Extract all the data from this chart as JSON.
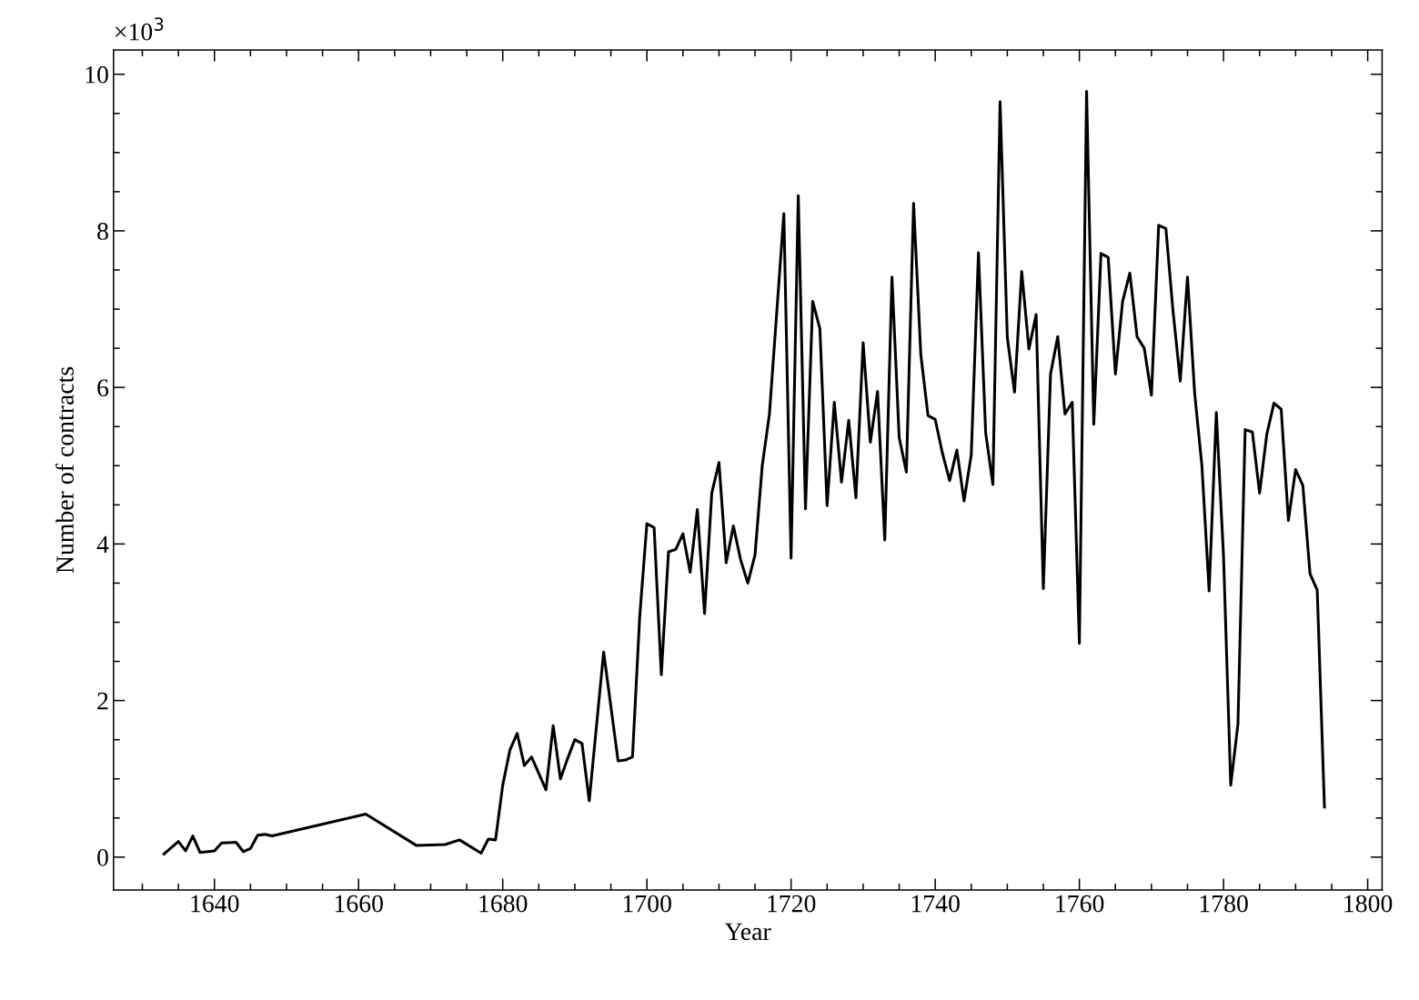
{
  "chart_data": {
    "type": "line",
    "xlabel": "Year",
    "ylabel": "Number of contracts",
    "annotations": [
      "×10$^{3}$"
    ],
    "x": [
      1633,
      1635,
      1636,
      1637,
      1638,
      1640,
      1641,
      1643,
      1644,
      1645,
      1646,
      1647,
      1648,
      1661,
      1668,
      1672,
      1674,
      1677,
      1678,
      1679,
      1680,
      1681,
      1682,
      1683,
      1684,
      1686,
      1687,
      1688,
      1689,
      1690,
      1691,
      1692,
      1694,
      1696,
      1697,
      1698,
      1699,
      1700,
      1701,
      1702,
      1703,
      1704,
      1705,
      1706,
      1707,
      1708,
      1709,
      1710,
      1711,
      1712,
      1713,
      1714,
      1715,
      1716,
      1717,
      1719,
      1720,
      1721,
      1722,
      1723,
      1724,
      1725,
      1726,
      1727,
      1728,
      1729,
      1730,
      1731,
      1732,
      1733,
      1734,
      1735,
      1736,
      1737,
      1738,
      1739,
      1740,
      1741,
      1742,
      1743,
      1744,
      1745,
      1746,
      1747,
      1748,
      1749,
      1750,
      1751,
      1752,
      1753,
      1754,
      1755,
      1756,
      1757,
      1758,
      1759,
      1760,
      1761,
      1762,
      1763,
      1764,
      1765,
      1766,
      1767,
      1768,
      1769,
      1770,
      1771,
      1772,
      1773,
      1774,
      1775,
      1776,
      1777,
      1778,
      1779,
      1780,
      1781,
      1782,
      1783,
      1784,
      1785,
      1786,
      1787,
      1788,
      1789,
      1790,
      1791,
      1792,
      1793,
      1794
    ],
    "series": [
      {
        "color": "#000000",
        "values": [
          0.04,
          0.2,
          0.08,
          0.27,
          0.06,
          0.08,
          0.18,
          0.19,
          0.07,
          0.11,
          0.28,
          0.29,
          0.27,
          0.55,
          0.15,
          0.16,
          0.22,
          0.05,
          0.23,
          0.22,
          0.92,
          1.37,
          1.58,
          1.17,
          1.28,
          0.86,
          1.68,
          1.0,
          1.26,
          1.5,
          1.45,
          0.72,
          2.62,
          1.23,
          1.24,
          1.28,
          3.07,
          4.26,
          4.21,
          2.33,
          3.9,
          3.93,
          4.13,
          3.64,
          4.44,
          3.11,
          4.65,
          5.04,
          3.76,
          4.23,
          3.8,
          3.5,
          3.86,
          5.0,
          5.66,
          8.22,
          3.82,
          8.45,
          4.45,
          7.1,
          6.75,
          4.49,
          5.81,
          4.79,
          5.58,
          4.59,
          6.57,
          5.3,
          5.95,
          4.05,
          7.41,
          5.36,
          4.92,
          8.35,
          6.42,
          5.64,
          5.59,
          5.16,
          4.81,
          5.2,
          4.55,
          5.14,
          7.72,
          5.42,
          4.76,
          9.65,
          6.64,
          5.94,
          7.48,
          6.49,
          6.93,
          3.43,
          6.17,
          6.65,
          5.66,
          5.81,
          2.73,
          9.78,
          5.53,
          7.71,
          7.66,
          6.17,
          7.1,
          7.46,
          6.65,
          6.5,
          5.9,
          8.07,
          8.03,
          6.97,
          6.08,
          7.41,
          5.92,
          5.0,
          3.4,
          5.68,
          3.84,
          0.92,
          1.7,
          5.46,
          5.43,
          4.65,
          5.4,
          5.8,
          5.72,
          4.3,
          4.95,
          4.75,
          3.62,
          3.41,
          0.64
        ]
      }
    ],
    "xlim": [
      1626,
      1802
    ],
    "xticks": [
      1640,
      1660,
      1680,
      1700,
      1720,
      1740,
      1760,
      1780,
      1800
    ],
    "ylim": [
      -0.42,
      10.31
    ],
    "yticks": [
      0,
      2,
      4,
      6,
      8,
      10
    ],
    "grid": false,
    "marker": "none",
    "line_style": "solid"
  }
}
